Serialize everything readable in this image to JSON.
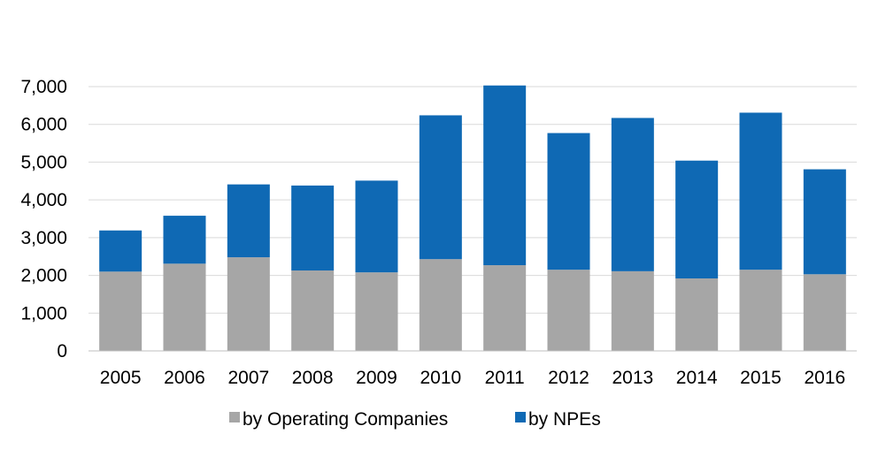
{
  "chart_data": {
    "type": "bar",
    "stacked": true,
    "categories": [
      "2005",
      "2006",
      "2007",
      "2008",
      "2009",
      "2010",
      "2011",
      "2012",
      "2013",
      "2014",
      "2015",
      "2016"
    ],
    "series": [
      {
        "name": "by Operating Companies",
        "color": "#a6a6a6",
        "values": [
          2100,
          2310,
          2480,
          2130,
          2080,
          2430,
          2270,
          2150,
          2110,
          1920,
          2150,
          2030
        ]
      },
      {
        "name": "by NPEs",
        "color": "#0f69b4",
        "values": [
          1090,
          1270,
          1930,
          2250,
          2430,
          3810,
          4760,
          3620,
          4060,
          3120,
          4160,
          2780
        ]
      }
    ],
    "yticks": [
      "0",
      "1,000",
      "2,000",
      "3,000",
      "4,000",
      "5,000",
      "6,000",
      "7,000"
    ],
    "ylim": [
      0,
      7000
    ],
    "grid": true,
    "legend_position": "bottom"
  }
}
